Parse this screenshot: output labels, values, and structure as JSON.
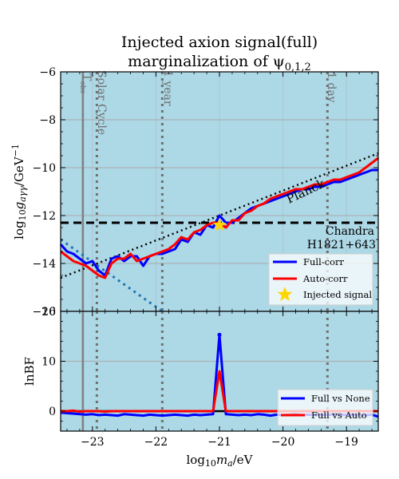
{
  "chart_data": [
    {
      "type": "line",
      "title": "Injected axion signal(full)",
      "subtitle": "marginalization of ψ",
      "subtitle_sub": "0,1,2",
      "xlabel": "log10 m_a/eV",
      "ylabel": "log10 g_aγγ/GeV^-1",
      "xlim": [
        -23.5,
        -18.5
      ],
      "ylim": [
        -16,
        -6
      ],
      "yticks": [
        -16,
        -14,
        -12,
        -10,
        -8,
        -6
      ],
      "ytick_labels": [
        "−16",
        "−14",
        "−12",
        "−10",
        "−8",
        "−6"
      ],
      "grid": true,
      "background": "#add8e6",
      "legend": "bottom-right",
      "series": [
        {
          "name": "Full-corr",
          "color": "#0000ff",
          "x": [
            -23.5,
            -23.4,
            -23.3,
            -23.2,
            -23.1,
            -23.0,
            -22.9,
            -22.8,
            -22.7,
            -22.6,
            -22.5,
            -22.4,
            -22.3,
            -22.2,
            -22.1,
            -22.0,
            -21.9,
            -21.8,
            -21.7,
            -21.6,
            -21.5,
            -21.4,
            -21.3,
            -21.2,
            -21.1,
            -21.0,
            -20.9,
            -20.8,
            -20.7,
            -20.6,
            -20.5,
            -20.4,
            -20.3,
            -20.2,
            -20.1,
            -20.0,
            -19.9,
            -19.8,
            -19.7,
            -19.6,
            -19.5,
            -19.4,
            -19.3,
            -19.2,
            -19.1,
            -19.0,
            -18.9,
            -18.8,
            -18.7,
            -18.6,
            -18.5
          ],
          "y": [
            -13.2,
            -13.5,
            -13.6,
            -13.8,
            -14.0,
            -13.9,
            -14.3,
            -14.5,
            -13.8,
            -13.7,
            -13.9,
            -13.7,
            -13.7,
            -14.1,
            -13.7,
            -13.6,
            -13.6,
            -13.5,
            -13.4,
            -13.0,
            -13.1,
            -12.7,
            -12.8,
            -12.4,
            -12.5,
            -12.0,
            -12.3,
            -12.3,
            -12.1,
            -11.9,
            -11.7,
            -11.6,
            -11.5,
            -11.4,
            -11.3,
            -11.2,
            -11.1,
            -11.0,
            -10.9,
            -10.9,
            -10.8,
            -10.8,
            -10.7,
            -10.6,
            -10.6,
            -10.5,
            -10.4,
            -10.3,
            -10.2,
            -10.1,
            -10.1
          ]
        },
        {
          "name": "Auto-corr",
          "color": "#ff0000",
          "x": [
            -23.5,
            -23.4,
            -23.3,
            -23.2,
            -23.1,
            -23.0,
            -22.9,
            -22.8,
            -22.7,
            -22.6,
            -22.5,
            -22.4,
            -22.3,
            -22.2,
            -22.1,
            -22.0,
            -21.9,
            -21.8,
            -21.7,
            -21.6,
            -21.5,
            -21.4,
            -21.3,
            -21.2,
            -21.1,
            -21.0,
            -20.9,
            -20.8,
            -20.7,
            -20.6,
            -20.5,
            -20.4,
            -20.3,
            -20.2,
            -20.1,
            -20.0,
            -19.9,
            -19.8,
            -19.7,
            -19.6,
            -19.5,
            -19.4,
            -19.3,
            -19.2,
            -19.1,
            -19.0,
            -18.9,
            -18.8,
            -18.7,
            -18.6,
            -18.5
          ],
          "y": [
            -13.5,
            -13.7,
            -13.9,
            -14.0,
            -14.1,
            -14.3,
            -14.5,
            -14.6,
            -14.0,
            -13.8,
            -13.8,
            -13.6,
            -13.9,
            -13.8,
            -13.7,
            -13.6,
            -13.5,
            -13.4,
            -13.2,
            -12.9,
            -13.0,
            -12.7,
            -12.6,
            -12.4,
            -12.3,
            -12.3,
            -12.5,
            -12.2,
            -12.2,
            -11.9,
            -11.8,
            -11.6,
            -11.5,
            -11.3,
            -11.2,
            -11.1,
            -11.0,
            -10.9,
            -10.9,
            -10.8,
            -10.7,
            -10.7,
            -10.6,
            -10.5,
            -10.5,
            -10.4,
            -10.3,
            -10.2,
            -10.0,
            -9.8,
            -9.6
          ]
        },
        {
          "name": "Injected signal",
          "type": "scatter",
          "marker": "star",
          "color": "#ffd700",
          "x": [
            -21.0
          ],
          "y": [
            -12.4
          ]
        }
      ],
      "reference_lines": {
        "chandra": {
          "label": "Chandra",
          "label2": "H1821+643",
          "y": -12.3,
          "style": "dashed",
          "color": "#000000"
        },
        "planck": {
          "label": "Planck",
          "style": "dotted",
          "color": "#000000",
          "x": [
            -23.5,
            -18.5
          ],
          "y": [
            -14.6,
            -9.4
          ]
        },
        "blue_dotted": {
          "style": "dotted",
          "color": "#1f77b4",
          "x": [
            -23.5,
            -21.9
          ],
          "y": [
            -13.0,
            -16.0
          ]
        },
        "t_obs": {
          "label": "T",
          "label_sub": "obs",
          "x": -23.15,
          "style": "solid",
          "color": "#808080"
        },
        "solar_cycle": {
          "label": "Solar Cycle",
          "x": -22.93,
          "style": "dotted",
          "color": "#707070"
        },
        "year": {
          "label": "1 year",
          "x": -21.9,
          "style": "dotted",
          "color": "#707070"
        },
        "day": {
          "label": "1 day",
          "x": -19.3,
          "style": "dotted",
          "color": "#707070"
        }
      }
    },
    {
      "type": "line",
      "xlabel": "log10 m_a/eV",
      "ylabel": "lnBF",
      "xlim": [
        -23.5,
        -18.5
      ],
      "ylim": [
        -4,
        20
      ],
      "xticks": [
        -23,
        -22,
        -21,
        -20,
        -19
      ],
      "xtick_labels": [
        "−23",
        "−22",
        "−21",
        "−20",
        "−19"
      ],
      "yticks": [
        0,
        10,
        20
      ],
      "ytick_labels": [
        "0",
        "10",
        "20"
      ],
      "grid": true,
      "background": "#add8e6",
      "legend": "bottom-right",
      "series": [
        {
          "name": "Full vs None",
          "color": "#0000ff",
          "x": [
            -23.5,
            -23.4,
            -23.3,
            -23.2,
            -23.1,
            -23.0,
            -22.9,
            -22.8,
            -22.7,
            -22.6,
            -22.5,
            -22.4,
            -22.3,
            -22.2,
            -22.1,
            -22.0,
            -21.9,
            -21.8,
            -21.7,
            -21.6,
            -21.5,
            -21.4,
            -21.3,
            -21.2,
            -21.1,
            -21.0,
            -20.9,
            -20.8,
            -20.7,
            -20.6,
            -20.5,
            -20.4,
            -20.3,
            -20.2,
            -20.1,
            -20.0,
            -19.9,
            -19.8,
            -19.7,
            -19.6,
            -19.5,
            -19.4,
            -19.3,
            -19.2,
            -19.1,
            -19.0,
            -18.9,
            -18.8,
            -18.7,
            -18.6,
            -18.5
          ],
          "y": [
            -0.3,
            -0.4,
            -0.5,
            -0.6,
            -0.7,
            -0.6,
            -0.8,
            -0.7,
            -0.8,
            -0.9,
            -0.6,
            -0.7,
            -0.8,
            -0.9,
            -0.7,
            -0.8,
            -0.9,
            -0.8,
            -0.7,
            -0.8,
            -0.9,
            -0.7,
            -0.8,
            -0.7,
            -0.6,
            15.3,
            -0.6,
            -0.7,
            -0.8,
            -0.7,
            -0.8,
            -0.6,
            -0.7,
            -0.9,
            -0.7,
            -0.8,
            -0.7,
            -0.6,
            -0.8,
            -0.7,
            -0.8,
            -0.7,
            -0.8,
            -0.6,
            -0.7,
            -0.8,
            -0.7,
            -0.9,
            -0.8,
            -0.7,
            -1.1
          ]
        },
        {
          "name": "Full vs Auto",
          "color": "#ff0000",
          "x": [
            -23.5,
            -23.4,
            -23.3,
            -23.2,
            -23.1,
            -23.0,
            -22.9,
            -22.8,
            -22.7,
            -22.6,
            -22.5,
            -22.4,
            -22.3,
            -22.2,
            -22.1,
            -22.0,
            -21.9,
            -21.8,
            -21.7,
            -21.6,
            -21.5,
            -21.4,
            -21.3,
            -21.2,
            -21.1,
            -21.0,
            -20.9,
            -20.8,
            -20.7,
            -20.6,
            -20.5,
            -20.4,
            -20.3,
            -20.2,
            -20.1,
            -20.0,
            -19.9,
            -19.8,
            -19.7,
            -19.6,
            -19.5,
            -19.4,
            -19.3,
            -19.2,
            -19.1,
            -19.0,
            -18.9,
            -18.8,
            -18.7,
            -18.6,
            -18.5
          ],
          "y": [
            0.0,
            0.0,
            0.1,
            -0.1,
            0.0,
            0.0,
            0.0,
            -0.1,
            0.0,
            0.0,
            0.0,
            0.0,
            0.0,
            0.0,
            0.0,
            0.0,
            0.0,
            0.0,
            0.0,
            0.0,
            0.0,
            0.0,
            0.0,
            0.0,
            0.0,
            8.0,
            0.0,
            0.0,
            0.0,
            0.0,
            0.0,
            0.0,
            0.0,
            0.0,
            0.0,
            0.0,
            0.0,
            0.0,
            0.0,
            0.0,
            0.0,
            0.0,
            0.0,
            0.0,
            0.0,
            0.0,
            0.0,
            0.0,
            0.0,
            0.0,
            0.0
          ]
        }
      ],
      "reference_lines": {
        "zero": {
          "y": 0,
          "style": "solid",
          "color": "#000000"
        }
      }
    }
  ]
}
